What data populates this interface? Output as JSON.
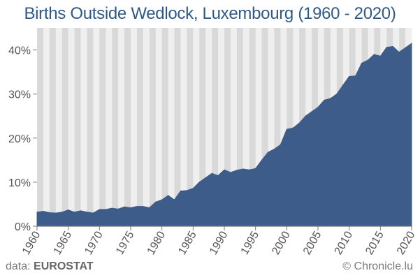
{
  "footer": {
    "source_prefix": "data:",
    "source_name": "EUROSTAT",
    "credit_symbol": "©",
    "credit_text": "Chronicle.lu"
  },
  "colors": {
    "title": "#2f5a88",
    "area_fill": "#3e5c8a",
    "stripe_a": "#d9d9d9",
    "stripe_b": "#efefef",
    "tick_text": "#555555"
  },
  "chart_data": {
    "type": "area",
    "title": "Births Outside Wedlock, Luxembourg (1960 - 2020)",
    "xlabel": "",
    "ylabel": "",
    "xlim": [
      1960,
      2020
    ],
    "ylim": [
      0,
      45
    ],
    "x_ticks": [
      1960,
      1965,
      1970,
      1975,
      1980,
      1985,
      1990,
      1995,
      2000,
      2005,
      2010,
      2015,
      2020
    ],
    "x_tick_labels": [
      "1960",
      "1965",
      "1970",
      "1975",
      "1980",
      "1985",
      "1990",
      "1995",
      "2000",
      "2005",
      "2010",
      "2015",
      "2020"
    ],
    "y_ticks": [
      0,
      10,
      20,
      30,
      40
    ],
    "y_tick_labels": [
      "0%",
      "10%",
      "20%",
      "30%",
      "40%"
    ],
    "unit": "%",
    "background": "alternating vertical stripes per year",
    "series": [
      {
        "name": "",
        "x": [
          1960,
          1961,
          1962,
          1963,
          1964,
          1965,
          1966,
          1967,
          1968,
          1969,
          1970,
          1971,
          1972,
          1973,
          1974,
          1975,
          1976,
          1977,
          1978,
          1979,
          1980,
          1981,
          1982,
          1983,
          1984,
          1985,
          1986,
          1987,
          1988,
          1989,
          1990,
          1991,
          1992,
          1993,
          1994,
          1995,
          1996,
          1997,
          1998,
          1999,
          2000,
          2001,
          2002,
          2003,
          2004,
          2005,
          2006,
          2007,
          2008,
          2009,
          2010,
          2011,
          2012,
          2013,
          2014,
          2015,
          2016,
          2017,
          2018,
          2019,
          2020
        ],
        "y": [
          3.2,
          3.4,
          3.1,
          3.0,
          3.2,
          3.7,
          3.2,
          3.5,
          3.2,
          3.0,
          3.8,
          3.8,
          4.1,
          3.9,
          4.4,
          4.2,
          4.5,
          4.5,
          4.2,
          5.5,
          6.0,
          7.0,
          6.0,
          8.0,
          8.1,
          8.6,
          10.0,
          11.0,
          12.0,
          11.5,
          12.8,
          12.2,
          12.7,
          13.0,
          12.8,
          13.1,
          15.0,
          16.8,
          17.5,
          18.5,
          22.0,
          22.3,
          23.4,
          25.0,
          26.0,
          27.0,
          28.6,
          29.0,
          30.0,
          32.0,
          34.0,
          34.1,
          37.0,
          37.7,
          39.0,
          38.6,
          40.6,
          40.8,
          39.5,
          40.5,
          41.5
        ]
      }
    ]
  }
}
